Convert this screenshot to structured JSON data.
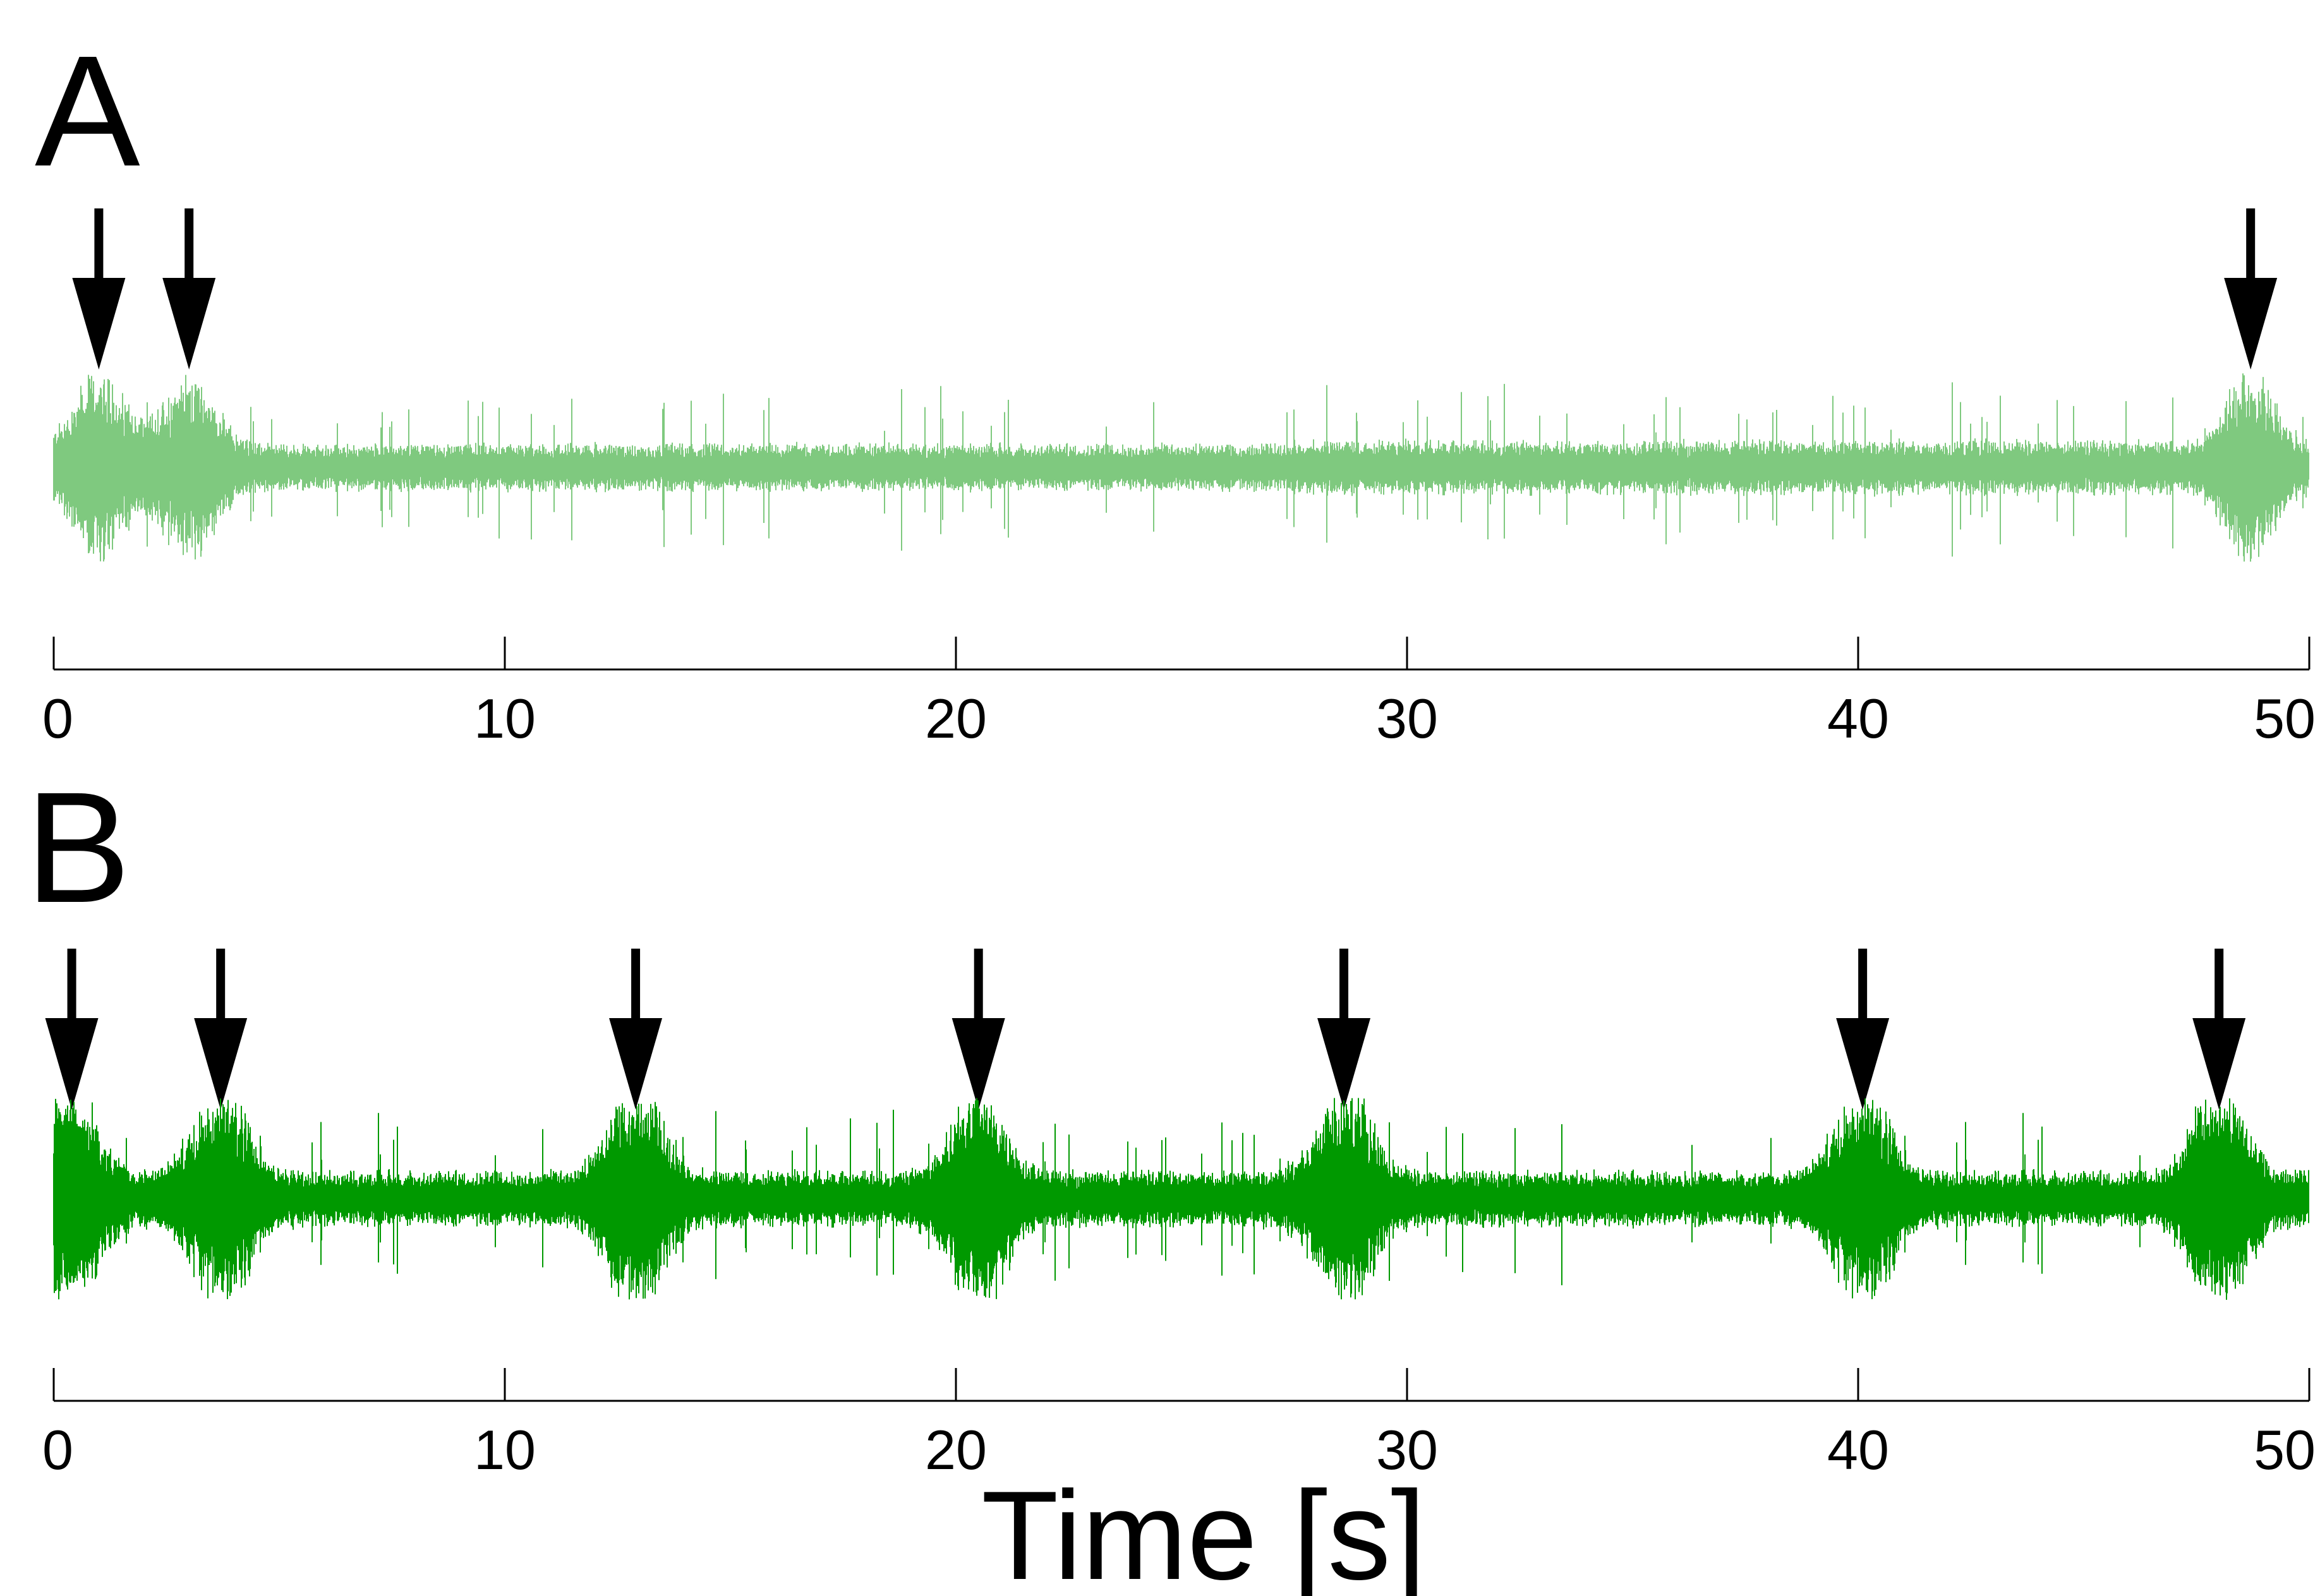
{
  "chart_data": [
    {
      "type": "line",
      "panel_label": "A",
      "xlabel": "",
      "xlim": [
        0,
        50
      ],
      "x_ticks": [
        0,
        10,
        20,
        30,
        40,
        50
      ],
      "x_tick_labels": [
        "0",
        "10",
        "20",
        "30",
        "40",
        "50"
      ],
      "trace_color": "#7fc97f",
      "arrow_times": [
        1.0,
        3.0,
        48.7
      ],
      "trace": {
        "baseline_amplitude": 0.27,
        "burst_times": [
          1.0,
          3.0,
          48.7
        ],
        "burst_amplitude": 0.85,
        "spiky_interval": [
          27.5,
          47.0
        ]
      },
      "grid": false
    },
    {
      "type": "line",
      "panel_label": "B",
      "xlabel": "Time [s]",
      "xlim": [
        0,
        50
      ],
      "x_ticks": [
        0,
        10,
        20,
        30,
        40,
        50
      ],
      "x_tick_labels": [
        "0",
        "10",
        "20",
        "30",
        "40",
        "50"
      ],
      "trace_color": "#009900",
      "arrow_times": [
        0.4,
        3.7,
        12.9,
        20.5,
        28.6,
        40.1,
        48.0
      ],
      "trace": {
        "baseline_amplitude": 0.3,
        "burst_times": [
          0.4,
          3.7,
          12.9,
          20.5,
          28.6,
          40.1,
          48.0
        ],
        "burst_amplitude": 1.0
      },
      "grid": false
    }
  ]
}
